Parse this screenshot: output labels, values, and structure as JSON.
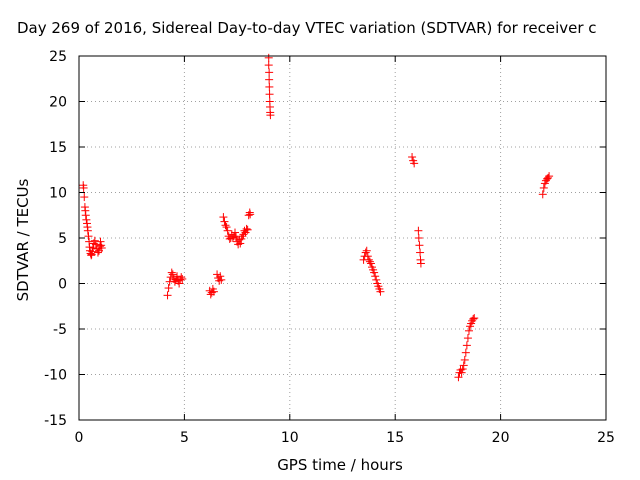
{
  "chart_data": {
    "type": "scatter",
    "title": "Day 269 of 2016, Sidereal Day-to-day VTEC variation (SDTVAR) for receiver c",
    "xlabel": "GPS time / hours",
    "ylabel": "SDTVAR / TECUs",
    "xlim": [
      0,
      25
    ],
    "ylim": [
      -15,
      25
    ],
    "xticks": [
      0,
      5,
      10,
      15,
      20,
      25
    ],
    "yticks": [
      -15,
      -10,
      -5,
      0,
      5,
      10,
      15,
      20,
      25
    ],
    "grid": true,
    "marker": "plus",
    "color": "#ff0000",
    "series": [
      {
        "x": [
          0.2,
          0.22,
          0.25,
          0.28,
          0.3,
          0.32,
          0.35,
          0.38,
          0.4,
          0.42,
          0.45,
          0.48,
          0.5,
          0.52,
          0.55,
          0.58,
          0.6,
          0.63,
          0.66,
          0.7,
          0.75,
          0.8,
          0.85,
          0.9,
          0.95,
          1.0,
          1.02,
          1.05,
          1.08,
          4.2,
          4.25,
          4.3,
          4.35,
          4.4,
          4.45,
          4.5,
          4.55,
          4.6,
          4.65,
          4.7,
          4.75,
          4.8,
          4.85,
          4.9,
          6.2,
          6.25,
          6.3,
          6.35,
          6.4,
          6.55,
          6.6,
          6.65,
          6.7,
          6.75,
          6.85,
          6.9,
          6.95,
          7.0,
          7.05,
          7.1,
          7.15,
          7.2,
          7.25,
          7.3,
          7.35,
          7.4,
          7.45,
          7.5,
          7.55,
          7.6,
          7.65,
          7.7,
          7.75,
          7.8,
          7.85,
          7.9,
          7.95,
          8.0,
          8.05,
          8.1,
          8.12,
          9.0,
          9.0,
          9.02,
          9.02,
          9.03,
          9.04,
          9.05,
          9.06,
          9.07,
          9.08,
          13.5,
          13.55,
          13.6,
          13.65,
          13.7,
          13.75,
          13.8,
          13.85,
          13.9,
          13.95,
          14.0,
          14.05,
          14.1,
          14.15,
          14.2,
          14.25,
          14.3,
          15.8,
          15.85,
          15.9,
          16.1,
          16.12,
          16.15,
          16.18,
          16.2,
          16.22,
          18.0,
          18.05,
          18.1,
          18.15,
          18.2,
          18.25,
          18.3,
          18.35,
          18.4,
          18.45,
          18.5,
          18.55,
          18.6,
          18.65,
          18.7,
          18.75,
          22.0,
          22.05,
          22.1,
          22.15,
          22.2,
          22.25,
          22.3
        ],
        "y": [
          10.8,
          10.5,
          9.5,
          8.4,
          8.0,
          7.5,
          7.0,
          6.6,
          6.2,
          5.8,
          5.2,
          4.6,
          4.0,
          3.6,
          3.3,
          3.1,
          3.2,
          3.5,
          3.9,
          4.4,
          4.7,
          4.3,
          3.8,
          3.4,
          3.6,
          4.1,
          4.6,
          4.2,
          3.9,
          -1.3,
          -0.5,
          0.2,
          0.7,
          1.2,
          1.0,
          0.5,
          0.2,
          0.4,
          0.8,
          0.3,
          0.0,
          0.4,
          0.7,
          0.5,
          -0.8,
          -1.2,
          -1.0,
          -0.6,
          -0.9,
          1.0,
          0.6,
          0.3,
          0.8,
          0.4,
          7.3,
          6.8,
          6.4,
          6.2,
          5.8,
          5.2,
          4.9,
          5.0,
          5.4,
          5.0,
          5.2,
          5.6,
          5.1,
          4.6,
          4.3,
          4.8,
          4.4,
          4.9,
          5.2,
          5.4,
          5.8,
          5.6,
          6.0,
          5.9,
          7.5,
          7.8,
          7.6,
          24.8,
          24.0,
          23.2,
          22.4,
          21.6,
          20.8,
          20.0,
          19.4,
          18.8,
          18.5,
          2.6,
          3.0,
          3.4,
          3.6,
          3.0,
          2.6,
          2.4,
          2.2,
          1.8,
          1.5,
          1.2,
          0.8,
          0.4,
          0.0,
          -0.3,
          -0.6,
          -0.9,
          13.9,
          13.5,
          13.2,
          5.8,
          5.0,
          4.2,
          3.4,
          2.6,
          2.2,
          -10.3,
          -9.8,
          -9.5,
          -9.8,
          -9.4,
          -9.0,
          -8.4,
          -7.6,
          -6.8,
          -6.0,
          -5.2,
          -4.7,
          -4.4,
          -4.1,
          -3.9,
          -3.8,
          9.8,
          10.5,
          11.0,
          11.3,
          11.5,
          11.6,
          11.8
        ]
      }
    ]
  }
}
